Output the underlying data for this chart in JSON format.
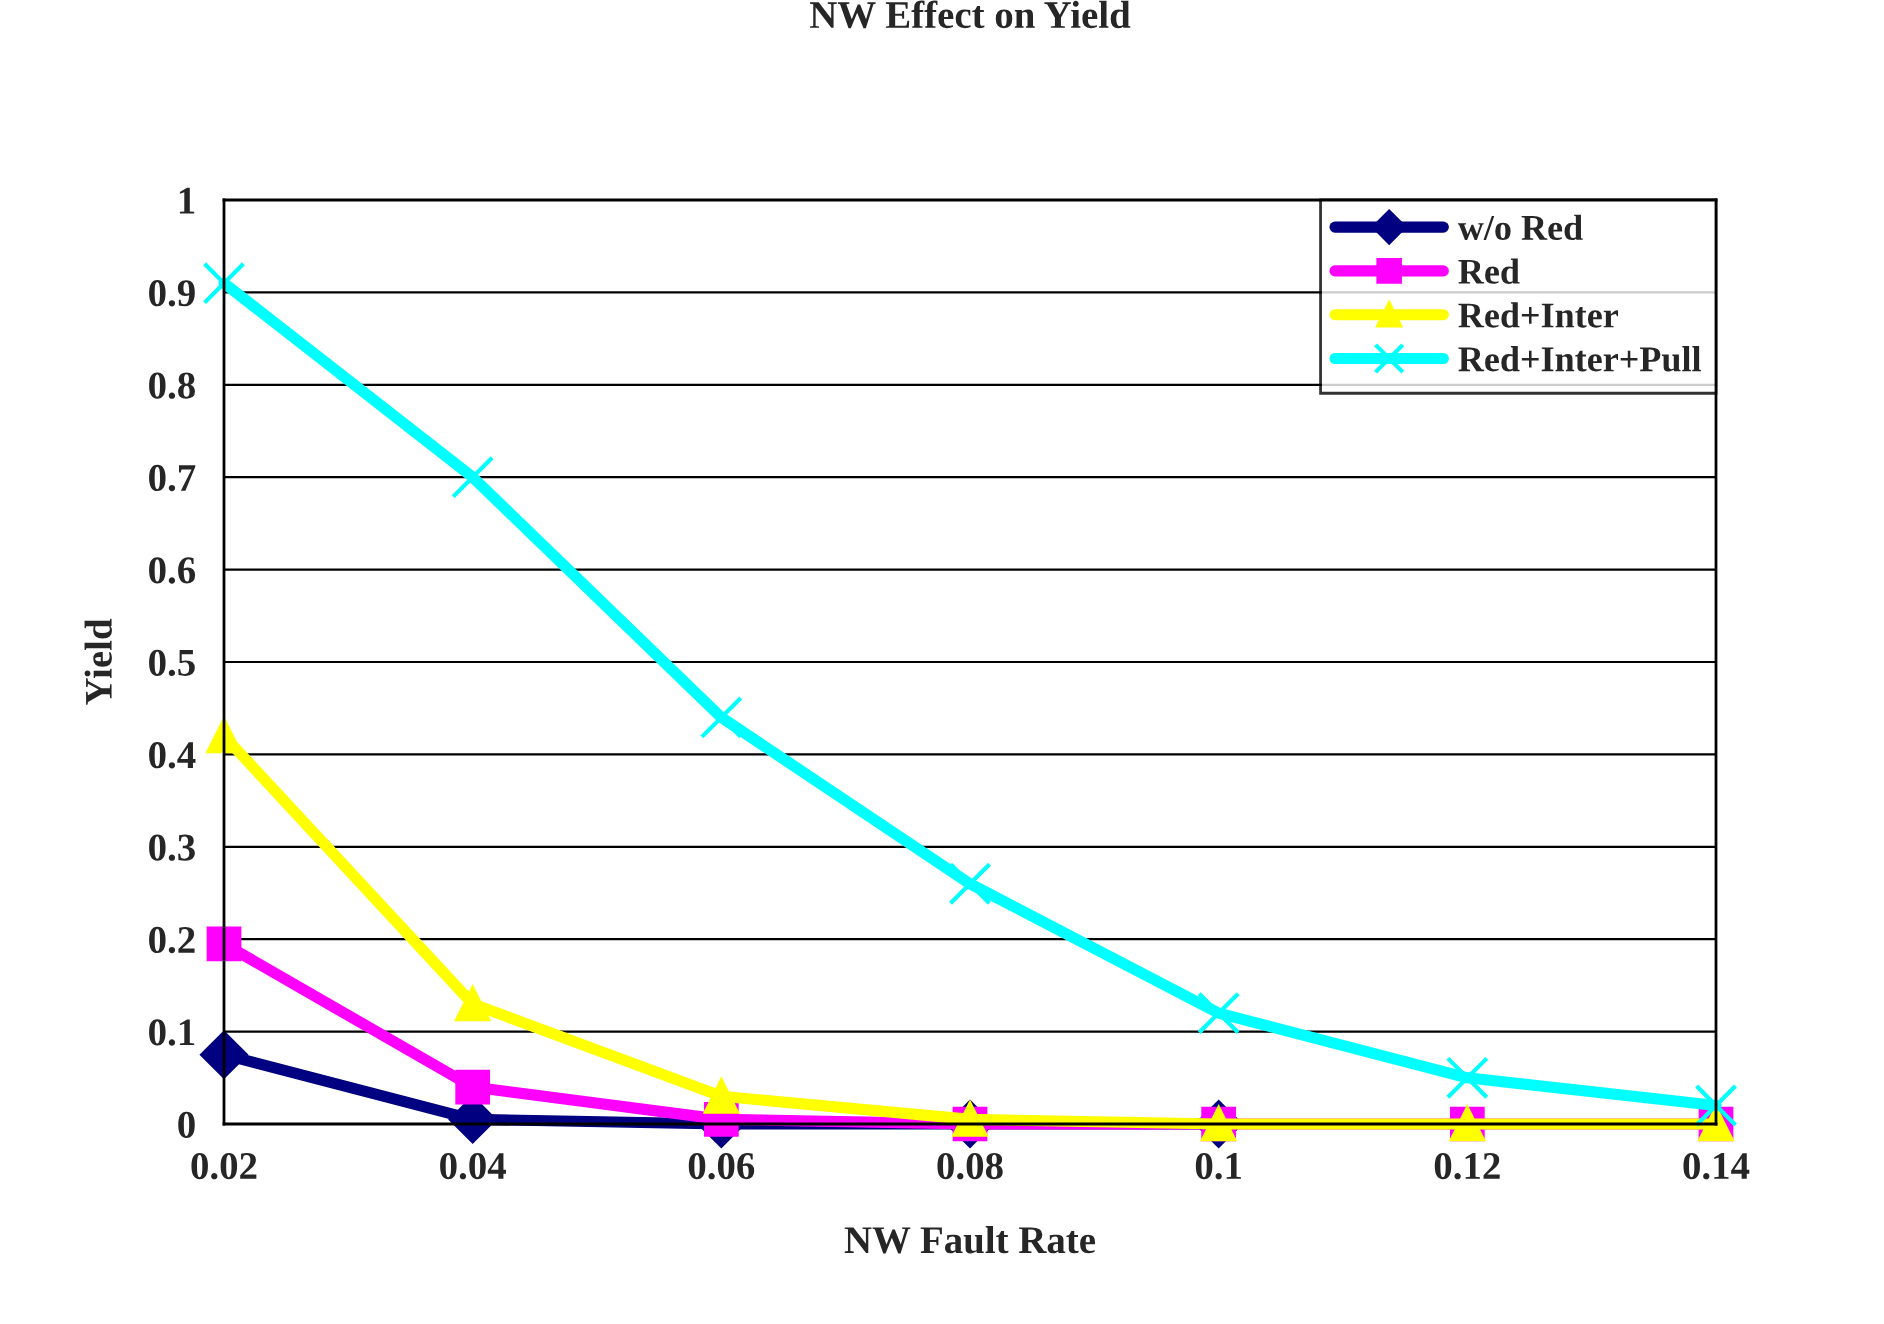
{
  "chart_data": {
    "type": "line",
    "title": "NW Effect on Yield",
    "xlabel": "NW Fault Rate",
    "ylabel": "Yield",
    "categories": [
      "0.02",
      "0.04",
      "0.06",
      "0.08",
      "0.1",
      "0.12",
      "0.14"
    ],
    "series": [
      {
        "name": "w/o Red",
        "color": "#000080",
        "marker": "diamond",
        "values": [
          0.075,
          0.005,
          0,
          0,
          0,
          null,
          null
        ]
      },
      {
        "name": "Red",
        "color": "#ff00ff",
        "marker": "square",
        "values": [
          0.195,
          0.04,
          0.005,
          0,
          0,
          0,
          0
        ]
      },
      {
        "name": "Red+Inter",
        "color": "#ffff00",
        "marker": "triangle",
        "values": [
          0.42,
          0.13,
          0.03,
          0.005,
          0,
          0,
          0
        ]
      },
      {
        "name": "Red+Inter+Pull",
        "color": "#00ffff",
        "marker": "cross",
        "values": [
          0.91,
          0.7,
          0.44,
          0.26,
          0.12,
          0.05,
          0.02
        ]
      }
    ],
    "ylim": [
      0,
      1
    ],
    "yticks": [
      0,
      0.1,
      0.2,
      0.3,
      0.4,
      0.5,
      0.6,
      0.7,
      0.8,
      0.9,
      1
    ],
    "grid": "y",
    "legend": "top right",
    "line_style": "solid"
  }
}
